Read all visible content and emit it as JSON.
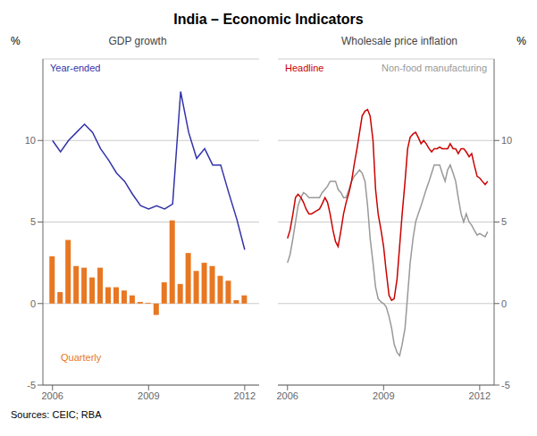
{
  "title": "India – Economic Indicators",
  "annotations": [
    "Sources: CEIC; RBA"
  ],
  "chart_data": [
    {
      "type": "bar",
      "subtitle": "GDP growth",
      "ylabel": "%",
      "x": [
        2006.0,
        2006.25,
        2006.5,
        2006.75,
        2007.0,
        2007.25,
        2007.5,
        2007.75,
        2008.0,
        2008.25,
        2008.5,
        2008.75,
        2009.0,
        2009.25,
        2009.5,
        2009.75,
        2010.0,
        2010.25,
        2010.5,
        2010.75,
        2011.0,
        2011.25,
        2011.5,
        2011.75,
        2012.0
      ],
      "xlim": [
        2005.7,
        2012.45
      ],
      "xticks": [
        2006,
        2009,
        2012
      ],
      "ylim": [
        -5,
        15
      ],
      "yticks": [
        -5,
        0,
        5,
        10
      ],
      "grid": true,
      "series": [
        {
          "name": "Quarterly",
          "type": "bar",
          "color": "#e87722",
          "values": [
            2.9,
            0.7,
            3.9,
            2.3,
            2.2,
            1.6,
            2.2,
            1.0,
            1.0,
            0.8,
            0.5,
            0.1,
            0.05,
            -0.7,
            1.3,
            5.1,
            1.2,
            3.1,
            2.0,
            2.5,
            2.3,
            1.7,
            1.4,
            0.2,
            0.5
          ]
        },
        {
          "name": "Year-ended",
          "type": "line",
          "color": "#3333aa",
          "values": [
            10.0,
            9.3,
            10.0,
            10.5,
            11.0,
            10.5,
            9.5,
            8.8,
            8.0,
            7.5,
            6.7,
            6.0,
            5.8,
            6.0,
            5.8,
            6.1,
            13.0,
            10.5,
            8.9,
            9.5,
            8.5,
            8.5,
            6.8,
            5.2,
            3.3
          ]
        }
      ]
    },
    {
      "type": "line",
      "subtitle": "Wholesale price inflation",
      "ylabel": "%",
      "x": [
        2006.0,
        2006.08,
        2006.17,
        2006.25,
        2006.33,
        2006.42,
        2006.5,
        2006.58,
        2006.67,
        2006.75,
        2006.83,
        2006.92,
        2007.0,
        2007.08,
        2007.17,
        2007.25,
        2007.33,
        2007.42,
        2007.5,
        2007.58,
        2007.67,
        2007.75,
        2007.83,
        2007.92,
        2008.0,
        2008.08,
        2008.17,
        2008.25,
        2008.33,
        2008.42,
        2008.5,
        2008.58,
        2008.67,
        2008.75,
        2008.83,
        2008.92,
        2009.0,
        2009.08,
        2009.17,
        2009.25,
        2009.33,
        2009.42,
        2009.5,
        2009.58,
        2009.67,
        2009.75,
        2009.83,
        2009.92,
        2010.0,
        2010.08,
        2010.17,
        2010.25,
        2010.33,
        2010.42,
        2010.5,
        2010.58,
        2010.67,
        2010.75,
        2010.83,
        2010.92,
        2011.0,
        2011.08,
        2011.17,
        2011.25,
        2011.33,
        2011.42,
        2011.5,
        2011.58,
        2011.67,
        2011.75,
        2011.83,
        2011.92,
        2012.0,
        2012.08,
        2012.17,
        2012.25
      ],
      "xlim": [
        2005.7,
        2012.45
      ],
      "xticks": [
        2006,
        2009,
        2012
      ],
      "ylim": [
        -5,
        15
      ],
      "yticks": [
        -5,
        0,
        5,
        10
      ],
      "grid": true,
      "series": [
        {
          "name": "Non-food manufacturing",
          "type": "line",
          "color": "#999999",
          "values": [
            2.5,
            3.0,
            4.0,
            5.0,
            6.0,
            6.5,
            6.8,
            6.7,
            6.5,
            6.5,
            6.5,
            6.5,
            6.5,
            6.8,
            7.0,
            7.2,
            7.5,
            7.5,
            7.5,
            7.0,
            6.8,
            6.5,
            6.5,
            7.0,
            7.5,
            7.8,
            8.0,
            8.2,
            8.0,
            7.5,
            6.0,
            4.0,
            2.5,
            1.0,
            0.3,
            0.1,
            0.0,
            -0.2,
            -0.8,
            -1.5,
            -2.5,
            -3.0,
            -3.2,
            -2.5,
            -1.5,
            0.5,
            2.5,
            4.0,
            5.0,
            5.5,
            6.0,
            6.5,
            7.0,
            7.5,
            8.0,
            8.5,
            8.5,
            8.5,
            8.0,
            7.5,
            8.2,
            8.5,
            8.0,
            7.5,
            6.5,
            5.5,
            5.0,
            5.5,
            5.0,
            4.8,
            4.5,
            4.2,
            4.3,
            4.2,
            4.1,
            4.4
          ]
        },
        {
          "name": "Headline",
          "type": "line",
          "color": "#cc0000",
          "values": [
            4.0,
            4.5,
            5.5,
            6.5,
            6.7,
            6.5,
            6.2,
            5.8,
            5.5,
            5.5,
            5.6,
            5.7,
            5.8,
            6.1,
            6.5,
            6.2,
            5.5,
            4.5,
            3.8,
            3.5,
            4.5,
            5.5,
            6.2,
            6.8,
            7.5,
            8.5,
            9.5,
            10.5,
            11.5,
            11.8,
            11.9,
            11.5,
            10.0,
            7.0,
            5.5,
            4.5,
            3.5,
            2.0,
            0.5,
            0.2,
            0.3,
            1.5,
            3.5,
            5.5,
            7.5,
            9.5,
            10.2,
            10.4,
            10.5,
            10.2,
            9.8,
            10.0,
            9.8,
            9.5,
            9.3,
            9.5,
            9.5,
            9.6,
            9.5,
            9.5,
            9.5,
            9.8,
            9.5,
            9.5,
            9.2,
            9.5,
            9.5,
            9.3,
            9.0,
            9.2,
            8.5,
            7.8,
            7.7,
            7.5,
            7.3,
            7.5
          ]
        }
      ]
    }
  ]
}
